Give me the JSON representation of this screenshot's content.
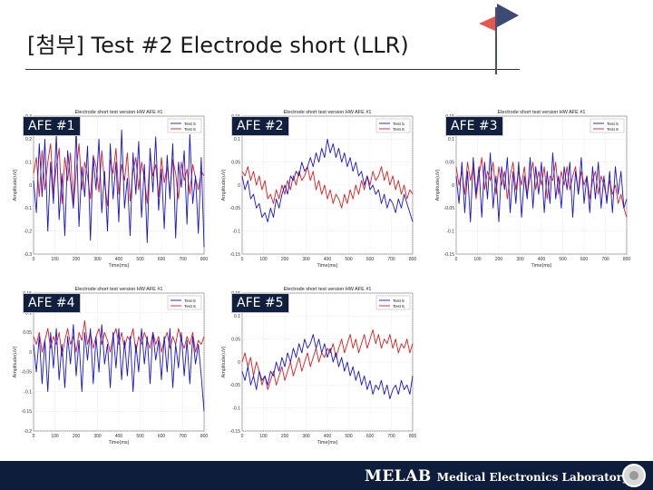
{
  "slide": {
    "title": "[첨부] Test #2 Electrode short (LLR)"
  },
  "footer": {
    "brand": "MELAB",
    "subtitle": "Medical Electronics Laboratory"
  },
  "colors": {
    "series1": "#1515d8",
    "series2": "#e31b1b",
    "footer_bg": "#0e1d3c",
    "label_bg": "#0f1f3d"
  },
  "chart_data": [
    {
      "type": "line",
      "panel_label": "AFE #1",
      "title": "Electrode short test version HW AFE #1",
      "xlabel": "Time(ms)",
      "ylabel": "Amplitude(uV)",
      "xlim": [
        0,
        800
      ],
      "ylim": [
        -0.3,
        0.3
      ],
      "xticks": [
        0,
        100,
        200,
        300,
        400,
        500,
        600,
        700,
        800
      ],
      "yticks": [
        0.3,
        0.2,
        0.1,
        0,
        -0.1,
        -0.2,
        -0.3
      ],
      "ytick_labels": [
        "0.3",
        "0.2",
        "0.1",
        "0",
        "-0.1",
        "-0.2",
        "-0.3"
      ],
      "grid": true,
      "legend": "top-right",
      "series": [
        {
          "name": "Test 5",
          "color": "#1515d8",
          "values": [
            0.02,
            -0.12,
            0.18,
            -0.05,
            0.2,
            -0.2,
            0.1,
            -0.08,
            0.22,
            -0.15,
            0.05,
            -0.22,
            0.15,
            0.02,
            -0.1,
            0.25,
            -0.18,
            0.08,
            -0.05,
            0.17,
            -0.24,
            0.12,
            -0.02,
            0.2,
            -0.12,
            0.06,
            -0.2,
            0.18,
            -0.06,
            0.1,
            -0.16,
            0.24,
            -0.1,
            0.03,
            -0.22,
            0.14,
            -0.04,
            0.19,
            -0.14,
            0.09,
            -0.25,
            0.16,
            -0.03,
            0.21,
            -0.11,
            0.07,
            -0.19,
            0.13,
            -0.06,
            0.18,
            -0.23,
            0.1,
            -0.01,
            0.15,
            -0.17,
            0.22,
            -0.08,
            0.04,
            -0.21,
            0.12,
            -0.27
          ]
        },
        {
          "name": "Test 6",
          "color": "#e31b1b",
          "values": [
            0.05,
            0.12,
            -0.05,
            0.15,
            -0.02,
            0.1,
            0.18,
            -0.04,
            0.08,
            0.16,
            -0.08,
            0.12,
            0.02,
            0.14,
            -0.1,
            0.06,
            0.18,
            -0.02,
            0.1,
            0.04,
            -0.06,
            0.13,
            0.08,
            -0.03,
            0.15,
            0.01,
            -0.09,
            0.11,
            0.05,
            0.16,
            -0.04,
            0.09,
            0.02,
            0.14,
            -0.07,
            0.06,
            0.12,
            -0.02,
            0.1,
            0.03,
            -0.08,
            0.13,
            0.04,
            0.09,
            -0.05,
            0.12,
            0.01,
            0.08,
            -0.03,
            0.11,
            0.05,
            -0.06,
            0.1,
            0.02,
            0.07,
            -0.04,
            0.09,
            0.03,
            -0.02,
            0.06,
            0.04
          ]
        }
      ]
    },
    {
      "type": "line",
      "panel_label": "AFE #2",
      "title": "Electrode short test version HW AFE #1",
      "xlabel": "Time(ms)",
      "ylabel": "Amplitude(uV)",
      "xlim": [
        0,
        800
      ],
      "ylim": [
        -0.15,
        0.15
      ],
      "xticks": [
        0,
        100,
        200,
        300,
        400,
        500,
        600,
        700,
        800
      ],
      "yticks": [
        0.15,
        0.1,
        0.05,
        0,
        -0.05,
        -0.1,
        -0.15
      ],
      "ytick_labels": [
        "0.15",
        "0.1",
        "0.05",
        "0",
        "-0.05",
        "-0.1",
        "-0.15"
      ],
      "grid": true,
      "legend": "top-right",
      "series": [
        {
          "name": "Test 5",
          "color": "#1515d8",
          "values": [
            0.02,
            -0.01,
            0.01,
            -0.03,
            -0.02,
            -0.05,
            -0.04,
            -0.07,
            -0.06,
            -0.08,
            -0.05,
            -0.07,
            -0.03,
            -0.05,
            -0.02,
            0.0,
            -0.02,
            0.02,
            0.01,
            0.03,
            0.02,
            0.05,
            0.03,
            0.04,
            0.06,
            0.04,
            0.07,
            0.05,
            0.08,
            0.06,
            0.1,
            0.07,
            0.09,
            0.06,
            0.08,
            0.05,
            0.07,
            0.04,
            0.06,
            0.03,
            0.05,
            0.02,
            0.03,
            0.0,
            0.02,
            -0.01,
            0.0,
            -0.02,
            -0.01,
            -0.04,
            -0.02,
            -0.05,
            -0.03,
            -0.04,
            -0.06,
            -0.03,
            -0.05,
            -0.02,
            -0.04,
            -0.06,
            -0.08
          ]
        },
        {
          "name": "Test 6",
          "color": "#e31b1b",
          "values": [
            0.03,
            0.02,
            0.04,
            0.01,
            0.03,
            0.0,
            0.02,
            -0.01,
            0.01,
            -0.03,
            -0.02,
            -0.04,
            -0.01,
            -0.03,
            0.0,
            -0.02,
            0.01,
            -0.01,
            0.02,
            0.0,
            0.03,
            0.01,
            0.02,
            0.04,
            0.01,
            0.03,
            -0.01,
            0.01,
            -0.02,
            0.0,
            -0.03,
            -0.01,
            -0.04,
            -0.02,
            -0.03,
            -0.05,
            -0.02,
            -0.04,
            -0.01,
            -0.03,
            0.0,
            -0.02,
            0.01,
            -0.01,
            0.02,
            0.0,
            0.03,
            0.01,
            0.02,
            0.04,
            0.01,
            0.03,
            0.0,
            0.02,
            -0.01,
            0.01,
            -0.02,
            0.0,
            -0.03,
            -0.01,
            -0.02
          ]
        }
      ]
    },
    {
      "type": "line",
      "panel_label": "AFE #3",
      "title": "Electrode short test version HW AFE #1",
      "xlabel": "Time(ms)",
      "ylabel": "Amplitude(uV)",
      "xlim": [
        0,
        800
      ],
      "ylim": [
        -0.15,
        0.15
      ],
      "xticks": [
        0,
        100,
        200,
        300,
        400,
        500,
        600,
        700,
        800
      ],
      "yticks": [
        0.15,
        0.1,
        0.05,
        0,
        -0.05,
        -0.1,
        -0.15
      ],
      "ytick_labels": [
        "0.15",
        "0.1",
        "0.05",
        "0",
        "-0.05",
        "-0.1",
        "-0.15"
      ],
      "grid": true,
      "legend": "top-right",
      "series": [
        {
          "name": "Test 5",
          "color": "#1515d8",
          "values": [
            0.02,
            -0.04,
            0.05,
            -0.06,
            0.03,
            -0.08,
            0.06,
            -0.02,
            0.04,
            -0.07,
            0.05,
            -0.03,
            0.07,
            -0.05,
            0.02,
            -0.08,
            0.04,
            -0.01,
            0.06,
            -0.06,
            0.03,
            -0.04,
            0.05,
            -0.07,
            0.02,
            -0.03,
            0.06,
            -0.05,
            0.04,
            -0.02,
            0.05,
            -0.06,
            0.03,
            -0.04,
            0.07,
            -0.03,
            0.02,
            -0.05,
            0.04,
            -0.01,
            0.05,
            -0.07,
            0.03,
            -0.02,
            0.06,
            -0.04,
            0.02,
            -0.06,
            0.04,
            -0.03,
            0.05,
            -0.05,
            0.02,
            -0.04,
            0.03,
            -0.06,
            0.04,
            -0.02,
            0.03,
            -0.05,
            -0.03
          ]
        },
        {
          "name": "Test 6",
          "color": "#e31b1b",
          "values": [
            0.04,
            0.0,
            0.03,
            -0.02,
            0.05,
            0.01,
            0.04,
            -0.03,
            0.02,
            0.06,
            -0.01,
            0.03,
            0.01,
            0.05,
            -0.02,
            0.04,
            0.0,
            0.03,
            -0.03,
            0.02,
            0.05,
            -0.01,
            0.03,
            0.0,
            0.04,
            -0.02,
            0.02,
            0.05,
            -0.01,
            0.03,
            0.0,
            0.04,
            -0.03,
            0.02,
            0.01,
            0.05,
            -0.02,
            0.03,
            0.0,
            0.04,
            -0.01,
            0.02,
            0.04,
            -0.02,
            0.03,
            0.0,
            0.02,
            -0.03,
            0.01,
            0.03,
            -0.02,
            0.02,
            0.0,
            -0.03,
            0.01,
            -0.02,
            0.0,
            -0.04,
            -0.02,
            -0.05,
            -0.07
          ]
        }
      ]
    },
    {
      "type": "line",
      "panel_label": "AFE #4",
      "title": "Electrode short test version HW AFE #1",
      "xlabel": "Time(ms)",
      "ylabel": "Amplitude(uV)",
      "xlim": [
        0,
        800
      ],
      "ylim": [
        -0.2,
        0.15
      ],
      "xticks": [
        0,
        100,
        200,
        300,
        400,
        500,
        600,
        700,
        800
      ],
      "yticks": [
        0.15,
        0.1,
        0.05,
        0,
        -0.05,
        -0.1,
        -0.15,
        -0.2
      ],
      "ytick_labels": [
        "0.15",
        "0.1",
        "0.05",
        "0",
        "-0.05",
        "-0.1",
        "-0.15",
        "-0.2"
      ],
      "grid": true,
      "legend": "top-right",
      "series": [
        {
          "name": "Test 5",
          "color": "#1515d8",
          "values": [
            0.02,
            -0.05,
            0.04,
            -0.08,
            0.03,
            -0.1,
            0.05,
            -0.04,
            0.06,
            -0.07,
            0.02,
            -0.09,
            0.04,
            -0.03,
            0.07,
            -0.06,
            0.03,
            -0.1,
            0.05,
            -0.02,
            0.06,
            -0.08,
            0.04,
            -0.05,
            0.07,
            -0.03,
            0.02,
            -0.09,
            0.05,
            -0.04,
            0.06,
            -0.07,
            0.03,
            -0.06,
            0.04,
            -0.1,
            0.02,
            -0.05,
            0.06,
            -0.03,
            0.04,
            -0.08,
            0.05,
            -0.02,
            0.03,
            -0.07,
            0.04,
            -0.05,
            0.06,
            -0.09,
            0.02,
            -0.04,
            0.05,
            -0.06,
            0.03,
            -0.08,
            0.04,
            -0.03,
            0.02,
            -0.06,
            -0.15
          ]
        },
        {
          "name": "Test 6",
          "color": "#e31b1b",
          "values": [
            0.04,
            0.02,
            0.05,
            0.0,
            0.03,
            0.06,
            0.01,
            0.04,
            0.02,
            0.05,
            -0.01,
            0.03,
            0.06,
            0.02,
            0.04,
            0.0,
            0.05,
            0.03,
            0.08,
            0.02,
            0.05,
            0.01,
            0.04,
            0.06,
            0.02,
            0.05,
            0.03,
            0.0,
            0.04,
            0.06,
            0.02,
            0.05,
            0.01,
            0.04,
            0.03,
            0.06,
            0.0,
            0.04,
            0.02,
            0.05,
            0.03,
            0.01,
            0.05,
            0.02,
            0.04,
            0.0,
            0.03,
            0.05,
            0.01,
            0.04,
            0.02,
            0.06,
            0.03,
            0.01,
            0.04,
            0.02,
            0.05,
            0.0,
            0.03,
            0.02,
            0.04
          ]
        }
      ]
    },
    {
      "type": "line",
      "panel_label": "AFE #5",
      "title": "Electrode short test version HW AFE #1",
      "xlabel": "Time(ms)",
      "ylabel": "Amplitude(uV)",
      "xlim": [
        0,
        800
      ],
      "ylim": [
        -0.15,
        0.15
      ],
      "xticks": [
        0,
        100,
        200,
        300,
        400,
        500,
        600,
        700,
        800
      ],
      "yticks": [
        0.15,
        0.1,
        0.05,
        0,
        -0.05,
        -0.1,
        -0.15
      ],
      "ytick_labels": [
        "0.15",
        "0.1",
        "0.05",
        "0",
        "-0.05",
        "-0.1",
        "-0.15"
      ],
      "grid": true,
      "legend": "top-right",
      "series": [
        {
          "name": "Test 5",
          "color": "#1515d8",
          "values": [
            -0.02,
            -0.04,
            -0.01,
            -0.05,
            -0.03,
            -0.06,
            -0.02,
            -0.04,
            -0.03,
            -0.05,
            -0.02,
            -0.03,
            0.0,
            -0.02,
            0.01,
            -0.01,
            0.02,
            0.0,
            0.03,
            0.01,
            0.04,
            0.02,
            0.05,
            0.03,
            0.04,
            0.06,
            0.03,
            0.05,
            0.02,
            0.04,
            0.01,
            0.03,
            0.0,
            0.02,
            -0.01,
            0.01,
            -0.02,
            0.0,
            -0.03,
            -0.01,
            -0.04,
            -0.02,
            -0.05,
            -0.03,
            -0.06,
            -0.04,
            -0.07,
            -0.05,
            -0.06,
            -0.04,
            -0.07,
            -0.05,
            -0.08,
            -0.06,
            -0.05,
            -0.07,
            -0.04,
            -0.06,
            -0.05,
            -0.07,
            -0.03
          ]
        },
        {
          "name": "Test 6",
          "color": "#e31b1b",
          "values": [
            0.0,
            0.02,
            -0.01,
            0.01,
            -0.03,
            0.0,
            -0.02,
            -0.05,
            -0.03,
            -0.06,
            -0.04,
            -0.02,
            -0.05,
            -0.03,
            -0.01,
            -0.04,
            -0.02,
            0.0,
            -0.03,
            -0.01,
            0.01,
            -0.02,
            0.0,
            0.02,
            -0.01,
            0.01,
            0.03,
            0.0,
            0.02,
            0.01,
            0.03,
            0.02,
            0.04,
            0.01,
            0.03,
            0.05,
            0.02,
            0.04,
            0.06,
            0.03,
            0.05,
            0.02,
            0.04,
            0.06,
            0.03,
            0.05,
            0.07,
            0.04,
            0.06,
            0.03,
            0.05,
            0.04,
            0.06,
            0.03,
            0.05,
            0.02,
            0.04,
            0.03,
            0.05,
            0.02,
            0.04
          ]
        }
      ]
    }
  ]
}
